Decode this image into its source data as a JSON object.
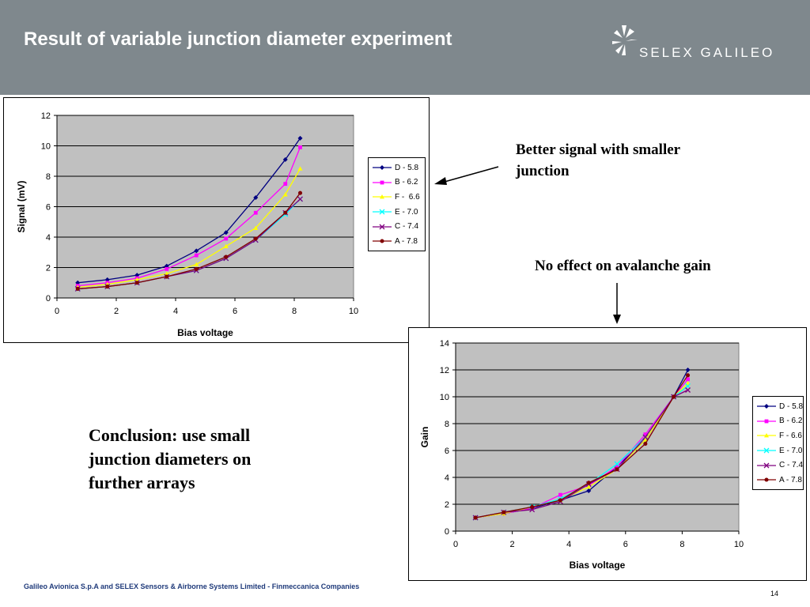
{
  "header": {
    "title": "Result of variable junction diameter experiment",
    "logo_text": "SELEX GALILEO"
  },
  "notes": {
    "better_signal": "Better signal with smaller junction",
    "no_effect": "No effect on avalanche gain",
    "conclusion": "Conclusion: use small junction diameters on further arrays"
  },
  "footer": {
    "text": "Galileo Avionica S.p.A and SELEX Sensors & Airborne Systems Limited - Finmeccanica Companies",
    "page_number": "14"
  },
  "chart_data": [
    {
      "type": "line",
      "title": "",
      "xlabel": "Bias voltage",
      "ylabel": "Signal (mV)",
      "xlim": [
        0,
        10
      ],
      "ylim": [
        0,
        12
      ],
      "xticks": [
        0,
        2,
        4,
        6,
        8,
        10
      ],
      "yticks": [
        0,
        2,
        4,
        6,
        8,
        10,
        12
      ],
      "grid": "horizontal",
      "plot_background": "#c0c0c0",
      "legend_position": "right",
      "series": [
        {
          "name": "D - 5.8",
          "color": "#000080",
          "marker": "diamond",
          "x": [
            0.7,
            1.7,
            2.7,
            3.7,
            4.7,
            5.7,
            6.7,
            7.7,
            8.2
          ],
          "y": [
            1.0,
            1.2,
            1.5,
            2.1,
            3.1,
            4.3,
            6.6,
            9.1,
            10.5
          ]
        },
        {
          "name": "B - 6.2",
          "color": "#ff00ff",
          "marker": "square",
          "x": [
            0.7,
            1.7,
            2.7,
            3.7,
            4.7,
            5.7,
            6.7,
            7.7,
            8.2
          ],
          "y": [
            0.8,
            1.0,
            1.3,
            1.9,
            2.8,
            3.9,
            5.6,
            7.5,
            9.9
          ]
        },
        {
          "name": "F -  6.6",
          "color": "#ffff00",
          "marker": "triangle",
          "x": [
            0.7,
            1.7,
            2.7,
            3.7,
            4.7,
            5.7,
            6.7,
            7.7,
            8.2
          ],
          "y": [
            0.7,
            0.9,
            1.2,
            1.6,
            2.2,
            3.4,
            4.6,
            6.8,
            8.5
          ]
        },
        {
          "name": "E - 7.0",
          "color": "#00ffff",
          "marker": "x",
          "x": [
            0.7,
            1.7,
            2.7,
            3.7,
            4.7,
            5.7,
            6.7,
            7.7,
            8.2
          ],
          "y": [
            0.6,
            0.75,
            1.0,
            1.4,
            1.8,
            2.6,
            3.8,
            5.5,
            6.5
          ]
        },
        {
          "name": "C - 7.4",
          "color": "#800080",
          "marker": "x",
          "x": [
            0.7,
            1.7,
            2.7,
            3.7,
            4.7,
            5.7,
            6.7,
            7.7,
            8.2
          ],
          "y": [
            0.6,
            0.75,
            1.0,
            1.4,
            1.8,
            2.6,
            3.8,
            5.6,
            6.5
          ]
        },
        {
          "name": "A - 7.8",
          "color": "#800000",
          "marker": "circle",
          "x": [
            0.7,
            1.7,
            2.7,
            3.7,
            4.7,
            5.7,
            6.7,
            7.7,
            8.2
          ],
          "y": [
            0.6,
            0.75,
            1.0,
            1.4,
            1.9,
            2.7,
            3.9,
            5.6,
            6.9
          ]
        }
      ]
    },
    {
      "type": "line",
      "title": "",
      "xlabel": "Bias voltage",
      "ylabel": "Gain",
      "xlim": [
        0,
        10
      ],
      "ylim": [
        0,
        14
      ],
      "xticks": [
        0,
        2,
        4,
        6,
        8,
        10
      ],
      "yticks": [
        0,
        2,
        4,
        6,
        8,
        10,
        12,
        14
      ],
      "grid": "horizontal",
      "plot_background": "#c0c0c0",
      "legend_position": "right",
      "series": [
        {
          "name": "D - 5.8",
          "color": "#000080",
          "marker": "diamond",
          "x": [
            0.7,
            1.7,
            2.7,
            3.7,
            4.7,
            5.7,
            6.7,
            7.7,
            8.2
          ],
          "y": [
            1.0,
            1.3,
            1.7,
            2.3,
            3.0,
            4.8,
            6.8,
            10.0,
            12.0
          ]
        },
        {
          "name": "B - 6.2",
          "color": "#ff00ff",
          "marker": "square",
          "x": [
            0.7,
            1.7,
            2.7,
            3.7,
            4.7,
            5.7,
            6.7,
            7.7,
            8.2
          ],
          "y": [
            1.0,
            1.3,
            1.7,
            2.7,
            3.4,
            4.8,
            7.2,
            10.0,
            11.3
          ]
        },
        {
          "name": "F - 6.6",
          "color": "#ffff00",
          "marker": "triangle",
          "x": [
            0.7,
            1.7,
            2.7,
            3.7,
            4.7,
            5.7,
            6.7,
            7.7,
            8.2
          ],
          "y": [
            1.0,
            1.3,
            1.8,
            2.3,
            3.3,
            4.6,
            6.8,
            10.0,
            11.0
          ]
        },
        {
          "name": "E - 7.0",
          "color": "#00ffff",
          "marker": "x",
          "x": [
            0.7,
            1.7,
            2.7,
            3.7,
            4.7,
            5.7,
            6.7,
            7.7,
            8.2
          ],
          "y": [
            1.0,
            1.4,
            1.8,
            2.4,
            3.5,
            5.0,
            7.0,
            10.0,
            10.8
          ]
        },
        {
          "name": "C - 7.4",
          "color": "#800080",
          "marker": "x",
          "x": [
            0.7,
            1.7,
            2.7,
            3.7,
            4.7,
            5.7,
            6.7,
            7.7,
            8.2
          ],
          "y": [
            1.0,
            1.4,
            1.6,
            2.2,
            3.5,
            4.6,
            7.0,
            10.0,
            10.5
          ]
        },
        {
          "name": "A - 7.8",
          "color": "#800000",
          "marker": "circle",
          "x": [
            0.7,
            1.7,
            2.7,
            3.7,
            4.7,
            5.7,
            6.7,
            7.7,
            8.2
          ],
          "y": [
            1.0,
            1.4,
            1.8,
            2.3,
            3.6,
            4.6,
            6.5,
            10.0,
            11.6
          ]
        }
      ]
    }
  ]
}
